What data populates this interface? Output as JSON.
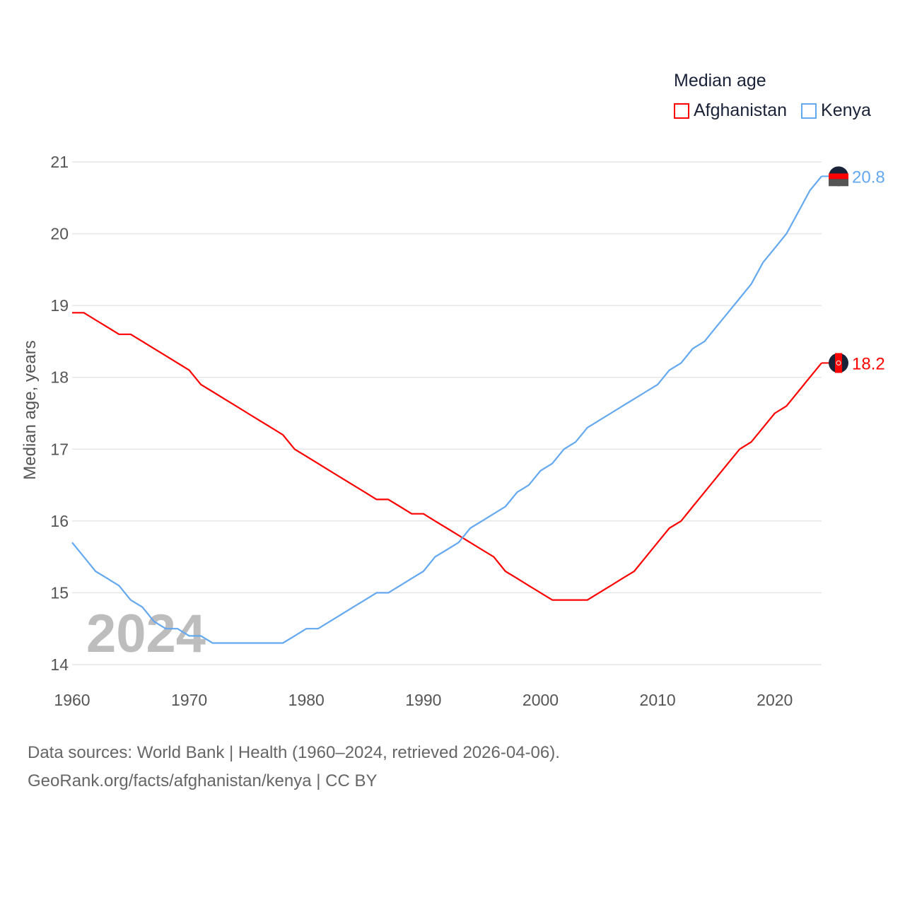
{
  "chart_data": {
    "type": "line",
    "title": "Median age",
    "xlabel": "",
    "ylabel": "Median age, years",
    "xlim": [
      1960,
      2024
    ],
    "ylim": [
      14,
      21
    ],
    "xticks": [
      "1960",
      "1970",
      "1980",
      "1990",
      "2000",
      "2010",
      "2020"
    ],
    "yticks": [
      "14",
      "15",
      "16",
      "17",
      "18",
      "19",
      "20",
      "21"
    ],
    "grid": true,
    "legend_position": "top-right",
    "watermark_year": "2024",
    "x": [
      1960,
      1961,
      1962,
      1963,
      1964,
      1965,
      1966,
      1967,
      1968,
      1969,
      1970,
      1971,
      1972,
      1973,
      1974,
      1975,
      1976,
      1977,
      1978,
      1979,
      1980,
      1981,
      1982,
      1983,
      1984,
      1985,
      1986,
      1987,
      1988,
      1989,
      1990,
      1991,
      1992,
      1993,
      1994,
      1995,
      1996,
      1997,
      1998,
      1999,
      2000,
      2001,
      2002,
      2003,
      2004,
      2005,
      2006,
      2007,
      2008,
      2009,
      2010,
      2011,
      2012,
      2013,
      2014,
      2015,
      2016,
      2017,
      2018,
      2019,
      2020,
      2021,
      2022,
      2023,
      2024
    ],
    "series": [
      {
        "name": "Afghanistan",
        "color": "#ff0000",
        "end_label": "18.2",
        "values": [
          18.9,
          18.9,
          18.8,
          18.7,
          18.6,
          18.6,
          18.5,
          18.4,
          18.3,
          18.2,
          18.1,
          17.9,
          17.8,
          17.7,
          17.6,
          17.5,
          17.4,
          17.3,
          17.2,
          17.0,
          16.9,
          16.8,
          16.7,
          16.6,
          16.5,
          16.4,
          16.3,
          16.3,
          16.2,
          16.1,
          16.1,
          16.0,
          15.9,
          15.8,
          15.7,
          15.6,
          15.5,
          15.3,
          15.2,
          15.1,
          15.0,
          14.9,
          14.9,
          14.9,
          14.9,
          15.0,
          15.1,
          15.2,
          15.3,
          15.5,
          15.7,
          15.9,
          16.0,
          16.2,
          16.4,
          16.6,
          16.8,
          17.0,
          17.1,
          17.3,
          17.5,
          17.6,
          17.8,
          18.0,
          18.2
        ]
      },
      {
        "name": "Kenya",
        "color": "#64a8f0",
        "end_label": "20.8",
        "values": [
          15.7,
          15.5,
          15.3,
          15.2,
          15.1,
          14.9,
          14.8,
          14.6,
          14.5,
          14.5,
          14.4,
          14.4,
          14.3,
          14.3,
          14.3,
          14.3,
          14.3,
          14.3,
          14.3,
          14.4,
          14.5,
          14.5,
          14.6,
          14.7,
          14.8,
          14.9,
          15.0,
          15.0,
          15.1,
          15.2,
          15.3,
          15.5,
          15.6,
          15.7,
          15.9,
          16.0,
          16.1,
          16.2,
          16.4,
          16.5,
          16.7,
          16.8,
          17.0,
          17.1,
          17.3,
          17.4,
          17.5,
          17.6,
          17.7,
          17.8,
          17.9,
          18.1,
          18.2,
          18.4,
          18.5,
          18.7,
          18.9,
          19.1,
          19.3,
          19.6,
          19.8,
          20.0,
          20.3,
          20.6,
          20.8
        ]
      }
    ]
  },
  "footer": {
    "line1": "Data sources: World Bank | Health (1960–2024, retrieved 2026-04-06).",
    "line2": "GeoRank.org/facts/afghanistan/kenya | CC BY"
  }
}
